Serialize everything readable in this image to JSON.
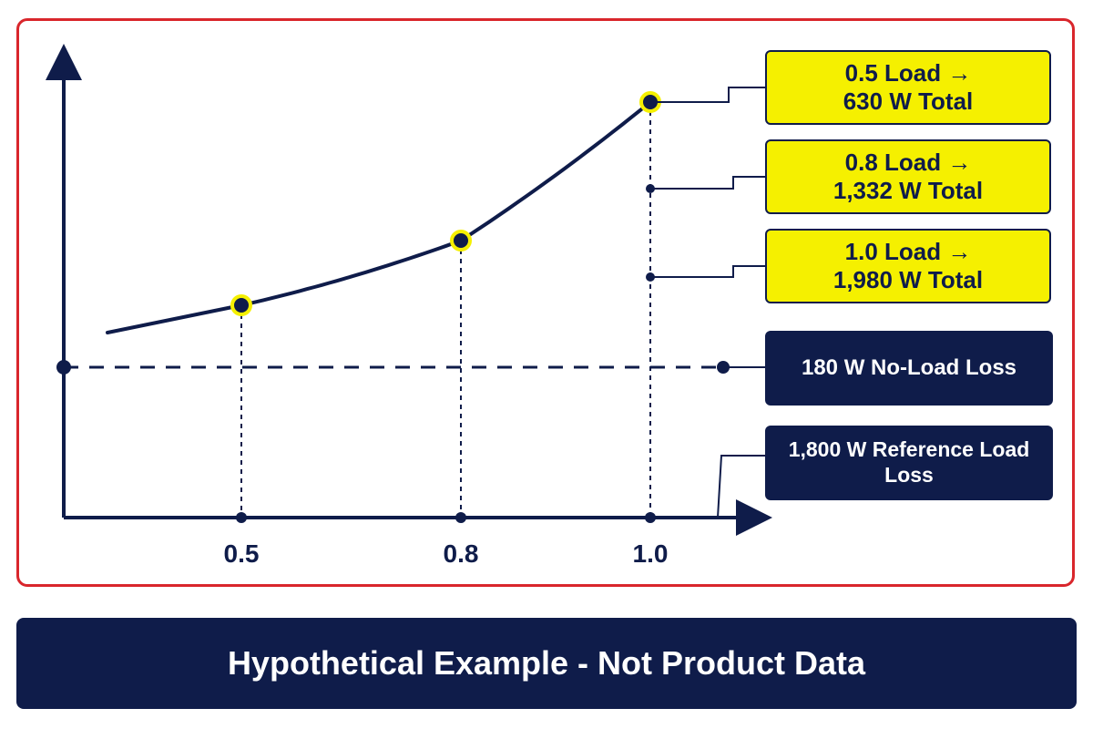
{
  "colors": {
    "navy": "#0f1c4a",
    "accent_yellow": "#f5f000",
    "frame_red": "#d9262c"
  },
  "chart_data": {
    "type": "line",
    "x_ticks": [
      "0.5",
      "0.8",
      "1.0"
    ],
    "curve": {
      "x": [
        0.5,
        0.8,
        1.0
      ],
      "y": [
        630,
        1332,
        1980
      ]
    },
    "highlighted_points": [
      0.5,
      0.8,
      1.0
    ],
    "reference_line": {
      "style": "dashed",
      "value": 180
    },
    "grid": false
  },
  "callouts": [
    {
      "line1": "0.5 Load →",
      "line2": "630 W Total"
    },
    {
      "line1": "0.8 Load →",
      "line2": "1,332 W Total"
    },
    {
      "line1": "1.0 Load →",
      "line2": "1,980 W Total"
    }
  ],
  "labels": {
    "no_load": "180 W No-Load Loss",
    "reference": "1,800 W Reference Load Loss"
  },
  "banner": {
    "text": "Hypothetical Example - Not Product Data"
  }
}
